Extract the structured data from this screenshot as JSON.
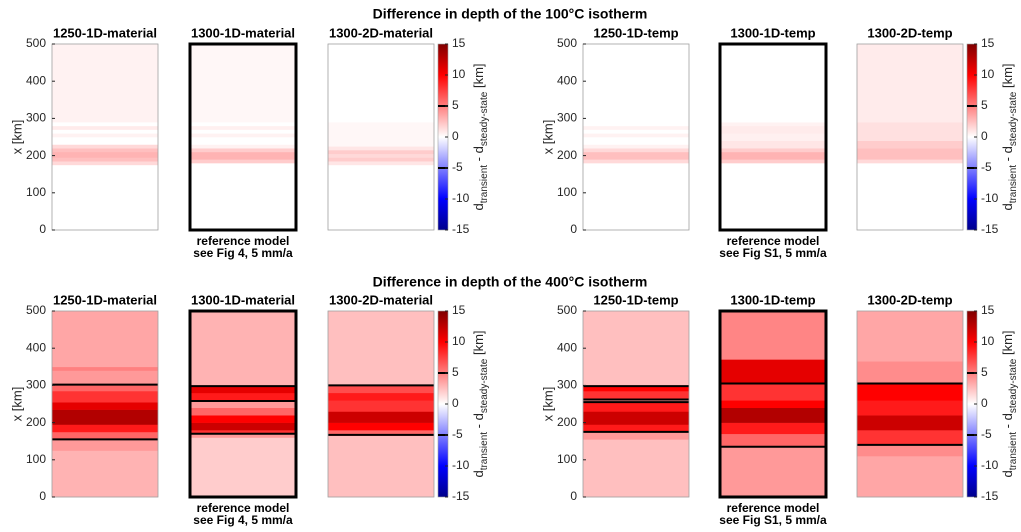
{
  "chart_data": [
    {
      "type": "heatmap",
      "title": "Difference in depth of the 100°C isotherm",
      "ylabel": "x [km]",
      "ylim": [
        0,
        500
      ],
      "yticks": [
        0,
        100,
        200,
        300,
        400,
        500
      ],
      "colorbar": {
        "lim": [
          -15,
          15
        ],
        "ticks": [
          -15,
          -10,
          -5,
          0,
          5,
          10,
          15
        ],
        "label": [
          "d",
          "transient",
          " - d",
          "steady-state",
          " [km]"
        ],
        "contour_levels": [
          -5,
          5
        ]
      },
      "colormap": [
        {
          "value": -15,
          "color": "#00008b"
        },
        {
          "value": -10,
          "color": "#0000ff"
        },
        {
          "value": 0,
          "color": "#ffffff"
        },
        {
          "value": 10,
          "color": "#ff0000"
        },
        {
          "value": 15,
          "color": "#7f0000"
        }
      ],
      "panels": [
        {
          "title": "1250-1D-material",
          "x_edges": [
            0,
            175,
            185,
            195,
            210,
            220,
            230,
            250,
            260,
            270,
            280,
            290,
            500
          ],
          "values": [
            0,
            1.5,
            2.5,
            3,
            2.5,
            1.5,
            0,
            0.5,
            0,
            0.8,
            0,
            0.5
          ],
          "contours": []
        },
        {
          "title": "1300-1D-material",
          "reference": true,
          "caption": [
            "reference model",
            "see Fig 4, 5 mm/a"
          ],
          "x_edges": [
            0,
            180,
            190,
            210,
            220,
            230,
            250,
            260,
            270,
            280,
            290,
            500
          ],
          "values": [
            0,
            2,
            3,
            2,
            0.5,
            0,
            0.5,
            0,
            0.6,
            0,
            0.3
          ],
          "contours": []
        },
        {
          "title": "1300-2D-material",
          "x_edges": [
            0,
            175,
            185,
            195,
            205,
            215,
            225,
            290,
            500
          ],
          "values": [
            0,
            1,
            2,
            1.5,
            2,
            1,
            0.3,
            0
          ],
          "contours": []
        },
        {
          "title": "1250-1D-temp",
          "x_edges": [
            0,
            180,
            190,
            210,
            220,
            230,
            250,
            260,
            270,
            280,
            500
          ],
          "values": [
            0,
            1.5,
            2.5,
            1.5,
            0.5,
            0,
            0.5,
            0,
            0.5,
            0
          ],
          "contours": []
        },
        {
          "title": "1300-1D-temp",
          "reference": true,
          "caption": [
            "reference model",
            "see Fig S1, 5 mm/a"
          ],
          "x_edges": [
            0,
            180,
            190,
            210,
            220,
            240,
            260,
            280,
            290,
            500
          ],
          "values": [
            0,
            2,
            3,
            2,
            1,
            0.6,
            0.8,
            0.5,
            0
          ],
          "contours": []
        },
        {
          "title": "1300-2D-temp",
          "x_edges": [
            0,
            180,
            190,
            220,
            240,
            290,
            500
          ],
          "values": [
            0,
            1.5,
            2.5,
            2,
            1.2,
            0.8
          ],
          "contours": []
        }
      ]
    },
    {
      "type": "heatmap",
      "title": "Difference in depth of the 400°C isotherm",
      "ylabel": "x [km]",
      "ylim": [
        0,
        500
      ],
      "yticks": [
        0,
        100,
        200,
        300,
        400,
        500
      ],
      "colorbar": {
        "lim": [
          -15,
          15
        ],
        "ticks": [
          -15,
          -10,
          -5,
          0,
          5,
          10,
          15
        ],
        "label": [
          "d",
          "transient",
          " - d",
          "steady-state",
          " [km]"
        ],
        "contour_levels": [
          -5,
          5
        ]
      },
      "colormap": [
        {
          "value": -15,
          "color": "#00008b"
        },
        {
          "value": -10,
          "color": "#0000ff"
        },
        {
          "value": 0,
          "color": "#ffffff"
        },
        {
          "value": 10,
          "color": "#ff0000"
        },
        {
          "value": 15,
          "color": "#7f0000"
        }
      ],
      "panels": [
        {
          "title": "1250-1D-material",
          "x_edges": [
            0,
            125,
            155,
            175,
            195,
            235,
            255,
            285,
            305,
            340,
            350,
            500
          ],
          "values": [
            3,
            4,
            6,
            9,
            13,
            11,
            8,
            6,
            4,
            5,
            3.5
          ],
          "contours": [
            155,
            302
          ]
        },
        {
          "title": "1300-1D-material",
          "reference": true,
          "caption": [
            "reference model",
            "see Fig 4, 5 mm/a"
          ],
          "x_edges": [
            0,
            160,
            170,
            180,
            200,
            220,
            240,
            260,
            280,
            300,
            500
          ],
          "values": [
            2,
            4,
            8,
            12,
            10,
            6,
            4,
            9,
            11,
            3
          ],
          "contours": [
            170,
            258,
            298
          ]
        },
        {
          "title": "1300-2D-material",
          "x_edges": [
            0,
            165,
            180,
            200,
            230,
            260,
            280,
            300,
            500
          ],
          "values": [
            2.5,
            6,
            10,
            12,
            8,
            9,
            7,
            2.5
          ],
          "contours": [
            167,
            300
          ]
        },
        {
          "title": "1250-1D-temp",
          "x_edges": [
            0,
            155,
            175,
            195,
            230,
            255,
            265,
            285,
            300,
            500
          ],
          "values": [
            2.5,
            4,
            9,
            12,
            9,
            4,
            8,
            10,
            2.5
          ],
          "contours": [
            175,
            255,
            262,
            298
          ]
        },
        {
          "title": "1300-1D-temp",
          "reference": true,
          "caption": [
            "reference model",
            "see Fig S1, 5 mm/a"
          ],
          "x_edges": [
            0,
            135,
            170,
            200,
            240,
            260,
            305,
            370,
            500
          ],
          "values": [
            4,
            6,
            9,
            13,
            10,
            8,
            11,
            4.8
          ],
          "contours": [
            135,
            305
          ]
        },
        {
          "title": "1300-2D-temp",
          "x_edges": [
            0,
            110,
            140,
            180,
            220,
            260,
            305,
            365,
            500
          ],
          "values": [
            3.5,
            4.5,
            8,
            12,
            9,
            10,
            4.5,
            3.5
          ],
          "contours": [
            140,
            305
          ]
        }
      ]
    }
  ]
}
